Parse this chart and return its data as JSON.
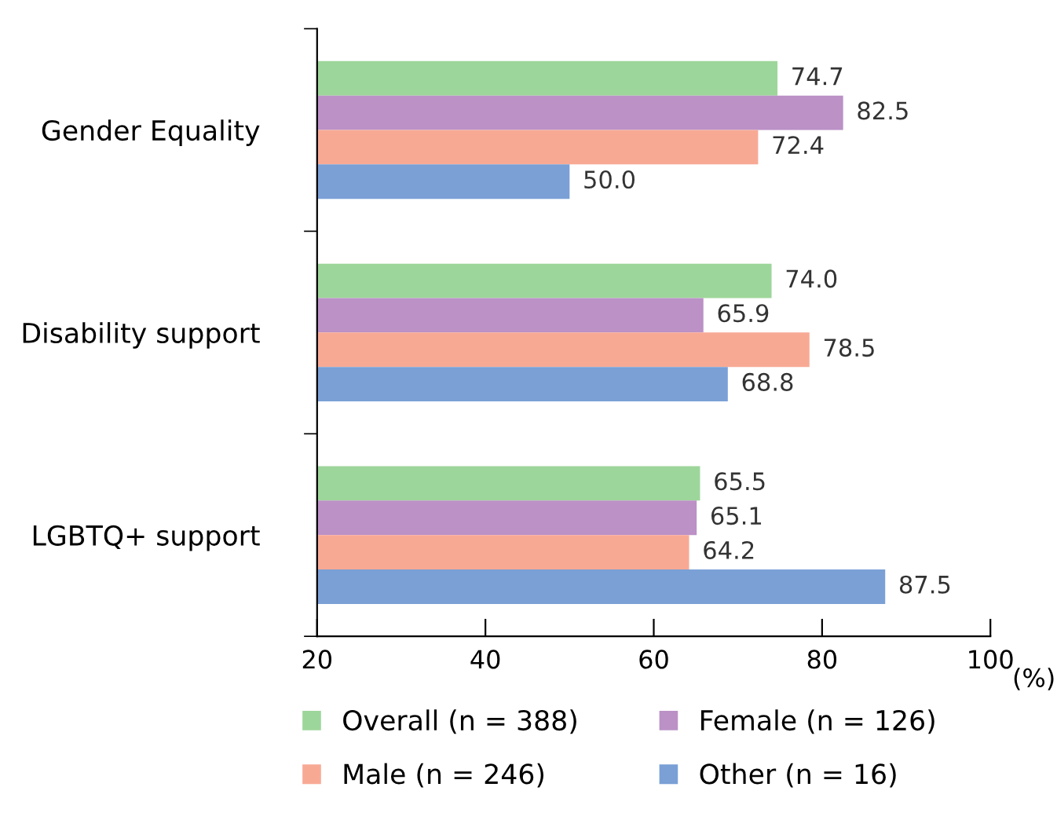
{
  "chart_data": {
    "type": "bar",
    "orientation": "horizontal",
    "categories": [
      "Gender Equality",
      "Disability support",
      "LGBTQ+ support"
    ],
    "series": [
      {
        "name": "Overall (n = 388)",
        "color": "#9dd69a",
        "values": [
          74.7,
          74.0,
          65.5
        ],
        "value_labels": [
          "74.7",
          "74.0",
          "65.5"
        ]
      },
      {
        "name": "Female (n = 126)",
        "color": "#bb91c6",
        "values": [
          82.5,
          65.9,
          65.1
        ],
        "value_labels": [
          "82.5",
          "65.9",
          "65.1"
        ]
      },
      {
        "name": "Male (n = 246)",
        "color": "#f8a994",
        "values": [
          72.4,
          78.5,
          64.2
        ],
        "value_labels": [
          "72.4",
          "78.5",
          "64.2"
        ]
      },
      {
        "name": "Other (n = 16)",
        "color": "#7aa0d6",
        "values": [
          50.0,
          68.8,
          87.5
        ],
        "value_labels": [
          "50.0",
          "68.8",
          "87.5"
        ]
      }
    ],
    "xlabel": "(%)",
    "xlim": [
      20,
      100
    ],
    "xticks": [
      20,
      40,
      60,
      80,
      100
    ],
    "grid": false,
    "legend": "bottom"
  }
}
